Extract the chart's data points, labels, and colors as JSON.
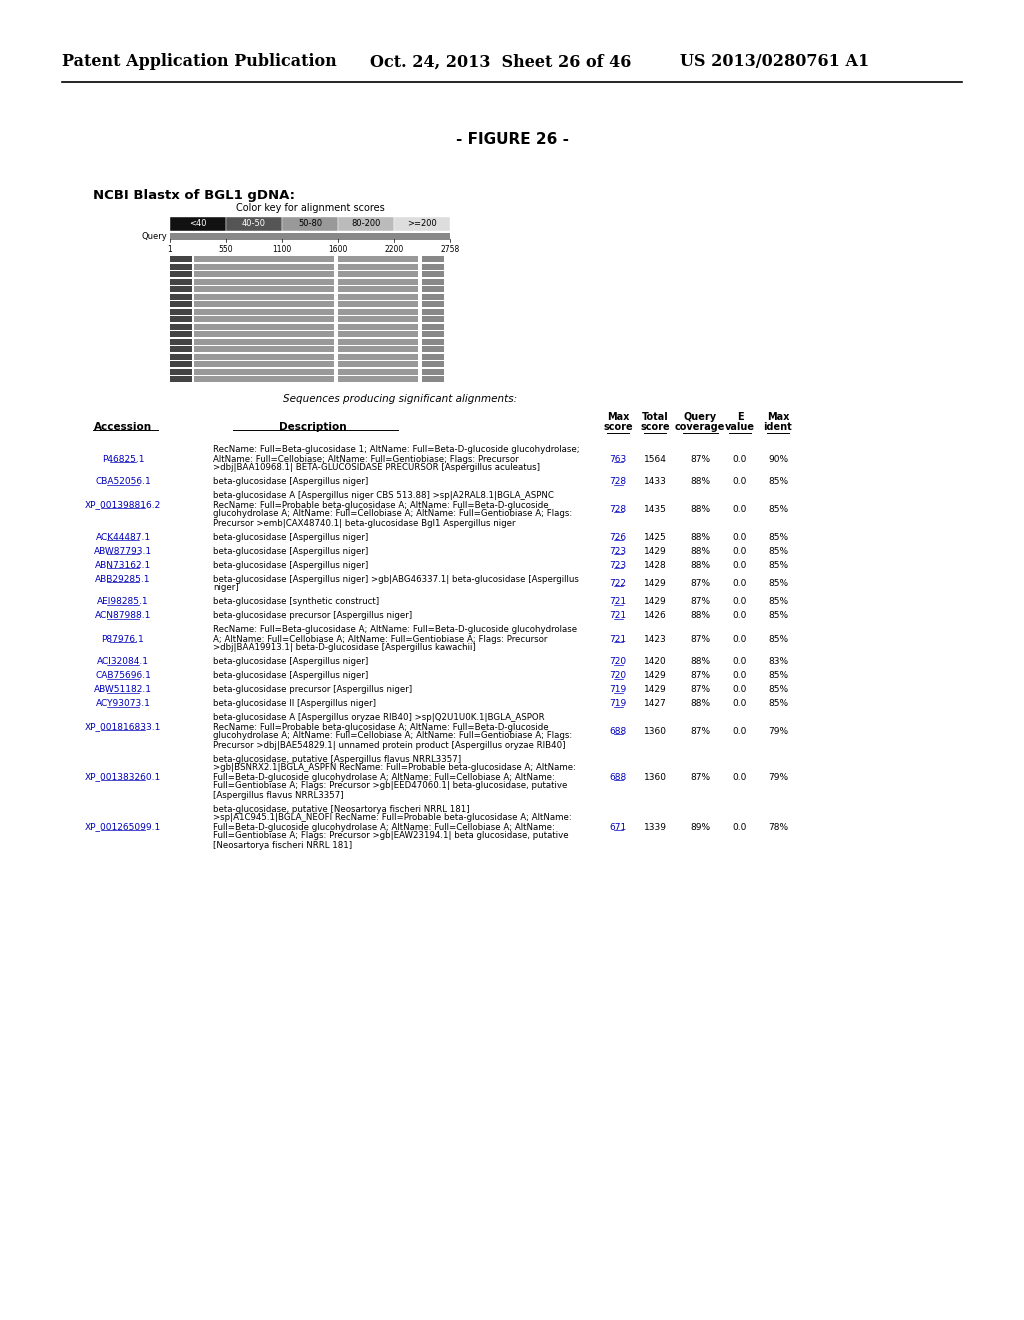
{
  "header_left": "Patent Application Publication",
  "header_middle": "Oct. 24, 2013  Sheet 26 of 46",
  "header_right": "US 2013/0280761 A1",
  "figure_title": "- FIGURE 26 -",
  "section_title": "NCBI Blastx of BGL1 gDNA:",
  "color_key_title": "Color key for alignment scores",
  "color_key_labels": [
    "<40",
    "40-50",
    "50-80",
    "80-200",
    ">=200"
  ],
  "query_label": "Query",
  "query_positions": [
    "1",
    "550",
    "1100",
    "1600",
    "2200",
    "2758"
  ],
  "sequences_label": "Sequences producing significant alignments:",
  "entries": [
    {
      "accession": "P46825.1",
      "desc_line1": "RecName: Full=Beta-glucosidase 1; AltName: Full=Beta-D-glucoside glucohydrolase;",
      "desc_line2": "AltName: Full=Cellobiase; AltName: Full=Gentiobiase; Flags: Precursor",
      "desc_line3": ">dbj|BAA10968.1| BETA-GLUCOSIDASE PRECURSOR [Aspergillus aculeatus]",
      "max_score": "763",
      "total_score": "1564",
      "query": "87%",
      "e_value": "0.0",
      "max_ident": "90%",
      "n_desc_lines": 3,
      "acc_at_line": 1
    },
    {
      "accession": "CBA52056.1",
      "desc_line1": "beta-glucosidase [Aspergillus niger]",
      "desc_line2": "",
      "desc_line3": "",
      "max_score": "728",
      "total_score": "1433",
      "query": "88%",
      "e_value": "0.0",
      "max_ident": "85%",
      "n_desc_lines": 1,
      "acc_at_line": 0
    },
    {
      "accession": "XP_001398816.2",
      "desc_line1": "beta-glucosidase A [Aspergillus niger CBS 513.88] >sp|A2RAL8.1|BGLA_ASPNC",
      "desc_line2": "RecName: Full=Probable beta-glucosidase A; AltName: Full=Beta-D-glucoside",
      "desc_line3": "glucohydrolase A; AltName: Full=Cellobiase A; AltName: Full=Gentiobiase A; Flags:",
      "desc_line4": "Precursor >emb|CAX48740.1| beta-glucosidase Bgl1 Aspergillus niger",
      "max_score": "728",
      "total_score": "1435",
      "query": "88%",
      "e_value": "0.0",
      "max_ident": "85%",
      "n_desc_lines": 4,
      "acc_at_line": 1
    },
    {
      "accession": "ACK44487.1",
      "desc_line1": "beta-glucosidase [Aspergillus niger]",
      "max_score": "726",
      "total_score": "1425",
      "query": "88%",
      "e_value": "0.0",
      "max_ident": "85%",
      "n_desc_lines": 1,
      "acc_at_line": 0
    },
    {
      "accession": "ABW87793.1",
      "desc_line1": "beta-glucosidase [Aspergillus niger]",
      "max_score": "723",
      "total_score": "1429",
      "query": "88%",
      "e_value": "0.0",
      "max_ident": "85%",
      "n_desc_lines": 1,
      "acc_at_line": 0
    },
    {
      "accession": "ABN73162.1",
      "desc_line1": "beta-glucosidase [Aspergillus niger]",
      "max_score": "723",
      "total_score": "1428",
      "query": "88%",
      "e_value": "0.0",
      "max_ident": "85%",
      "n_desc_lines": 1,
      "acc_at_line": 0
    },
    {
      "accession": "ABB29285.1",
      "desc_line1": "beta-glucosidase [Aspergillus niger] >gb|ABG46337.1| beta-glucosidase [Aspergillus",
      "desc_line2": "niger]",
      "max_score": "722",
      "total_score": "1429",
      "query": "87%",
      "e_value": "0.0",
      "max_ident": "85%",
      "n_desc_lines": 2,
      "acc_at_line": 0
    },
    {
      "accession": "AEI98285.1",
      "desc_line1": "beta-glucosidase [synthetic construct]",
      "max_score": "721",
      "total_score": "1429",
      "query": "87%",
      "e_value": "0.0",
      "max_ident": "85%",
      "n_desc_lines": 1,
      "acc_at_line": 0
    },
    {
      "accession": "ACN87988.1",
      "desc_line1": "beta-glucosidase precursor [Aspergillus niger]",
      "max_score": "721",
      "total_score": "1426",
      "query": "88%",
      "e_value": "0.0",
      "max_ident": "85%",
      "n_desc_lines": 1,
      "acc_at_line": 0
    },
    {
      "accession": "P87976.1",
      "desc_line1": "RecName: Full=Beta-glucosidase A; AltName: Full=Beta-D-glucoside glucohydrolase",
      "desc_line2": "A; AltName: Full=Cellobiase A; AltName: Full=Gentiobiase A; Flags: Precursor",
      "desc_line3": ">dbj|BAA19913.1| beta-D-glucosidase [Aspergillus kawachii]",
      "max_score": "721",
      "total_score": "1423",
      "query": "87%",
      "e_value": "0.0",
      "max_ident": "85%",
      "n_desc_lines": 3,
      "acc_at_line": 1
    },
    {
      "accession": "ACI32084.1",
      "desc_line1": "beta-glucosidase [Aspergillus niger]",
      "max_score": "720",
      "total_score": "1420",
      "query": "88%",
      "e_value": "0.0",
      "max_ident": "83%",
      "n_desc_lines": 1,
      "acc_at_line": 0
    },
    {
      "accession": "CAB75696.1",
      "desc_line1": "beta-glucosidase [Aspergillus niger]",
      "max_score": "720",
      "total_score": "1429",
      "query": "87%",
      "e_value": "0.0",
      "max_ident": "85%",
      "n_desc_lines": 1,
      "acc_at_line": 0
    },
    {
      "accession": "ABW51182.1",
      "desc_line1": "beta-glucosidase precursor [Aspergillus niger]",
      "max_score": "719",
      "total_score": "1429",
      "query": "87%",
      "e_value": "0.0",
      "max_ident": "85%",
      "n_desc_lines": 1,
      "acc_at_line": 0
    },
    {
      "accession": "ACY93073.1",
      "desc_line1": "beta-glucosidase II [Aspergillus niger]",
      "max_score": "719",
      "total_score": "1427",
      "query": "88%",
      "e_value": "0.0",
      "max_ident": "85%",
      "n_desc_lines": 1,
      "acc_at_line": 0
    },
    {
      "accession": "XP_001816833.1",
      "desc_line1": "beta-glucosidase A [Aspergillus oryzae RIB40] >sp|Q2U1U0K.1|BGLA_ASPOR",
      "desc_line2": "RecName: Full=Probable beta-glucosidase A; AltName: Full=Beta-D-glucoside",
      "desc_line3": "glucohydrolase A; AltName: Full=Cellobiase A; AltName: Full=Gentiobiase A; Flags:",
      "desc_line4": "Precursor >dbj|BAE54829.1| unnamed protein product [Aspergillus oryzae RIB40]",
      "max_score": "688",
      "total_score": "1360",
      "query": "87%",
      "e_value": "0.0",
      "max_ident": "79%",
      "n_desc_lines": 4,
      "acc_at_line": 1
    },
    {
      "accession": "XP_001383260.1",
      "desc_line1": "beta-glucosidase, putative [Aspergillus flavus NRRL3357]",
      "desc_line2": ">gb|BSNRX2.1|BGLA_ASPFN RecName: Full=Probable beta-glucosidase A; AltName:",
      "desc_line3": "Full=Beta-D-glucoside glucohydrolase A; AltName: Full=Cellobiase A; AltName:",
      "desc_line4": "Full=Gentiobiase A; Flags: Precursor >gb|EED47060.1| beta-glucosidase, putative",
      "desc_line5": "[Aspergillus flavus NRRL3357]",
      "max_score": "688",
      "total_score": "1360",
      "query": "87%",
      "e_value": "0.0",
      "max_ident": "79%",
      "n_desc_lines": 5,
      "acc_at_line": 2
    },
    {
      "accession": "XP_001265099.1",
      "desc_line1": "beta-glucosidase, putative [Neosartorya fischeri NRRL 181]",
      "desc_line2": ">sp|A1C945.1|BGLA_NEOFI RecName: Full=Probable beta-glucosidase A; AltName:",
      "desc_line3": "Full=Beta-D-glucoside glucohydrolase A; AltName: Full=Cellobiase A; AltName:",
      "desc_line4": "Full=Gentiobiase A; Flags: Precursor >gb|EAW23194.1| beta glucosidase, putative",
      "desc_line5": "[Neosartorya fischeri NRRL 181]",
      "max_score": "671",
      "total_score": "1339",
      "query": "89%",
      "e_value": "0.0",
      "max_ident": "78%",
      "n_desc_lines": 5,
      "acc_at_line": 2
    }
  ]
}
